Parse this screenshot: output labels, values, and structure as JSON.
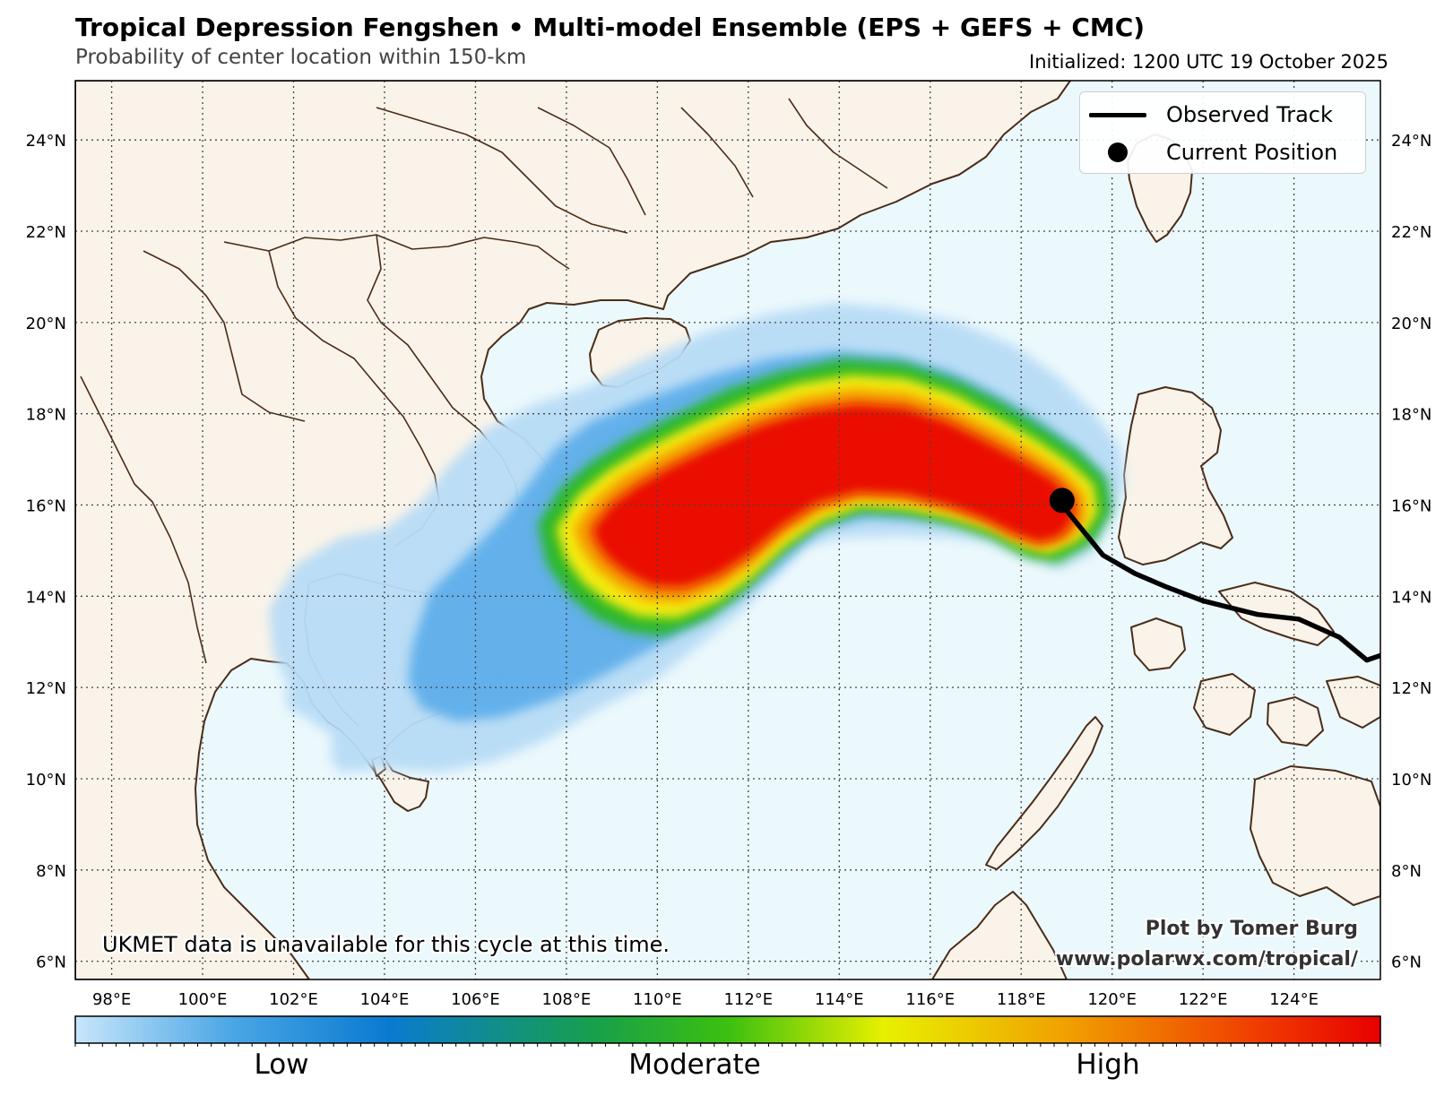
{
  "header": {
    "title": "Tropical Depression Fengshen • Multi-model Ensemble (EPS + GEFS + CMC)",
    "subtitle": "Probability of center location within 150-km",
    "initialized": "Initialized: 1200 UTC 19 October 2025"
  },
  "map": {
    "lon_range": [
      97.2,
      125.9
    ],
    "lat_range": [
      5.6,
      25.3
    ],
    "lat_ticks": [
      "6°N",
      "8°N",
      "10°N",
      "12°N",
      "14°N",
      "16°N",
      "18°N",
      "20°N",
      "22°N",
      "24°N"
    ],
    "lat_values": [
      6,
      8,
      10,
      12,
      14,
      16,
      18,
      20,
      22,
      24
    ],
    "lon_ticks": [
      "98°E",
      "100°E",
      "102°E",
      "104°E",
      "106°E",
      "108°E",
      "110°E",
      "112°E",
      "114°E",
      "116°E",
      "118°E",
      "120°E",
      "122°E",
      "124°E"
    ],
    "lon_values": [
      98,
      100,
      102,
      104,
      106,
      108,
      110,
      112,
      114,
      116,
      118,
      120,
      122,
      124
    ],
    "grid": true,
    "colors": {
      "ocean": "#ebf8fc",
      "land": "#faf3e9",
      "coast": "#4a2c18",
      "track": "#000000"
    },
    "observed_track": [
      [
        125.9,
        12.7
      ],
      [
        125.6,
        12.6
      ],
      [
        125.0,
        13.1
      ],
      [
        124.1,
        13.5
      ],
      [
        123.2,
        13.6
      ],
      [
        122.0,
        13.9
      ],
      [
        121.2,
        14.2
      ],
      [
        120.5,
        14.5
      ],
      [
        119.8,
        14.9
      ],
      [
        118.9,
        16.0
      ]
    ],
    "current_position": [
      118.9,
      16.1
    ],
    "probability_axis": [
      [
        107.5,
        15.5
      ],
      [
        108.7,
        15.0
      ],
      [
        110.0,
        15.6
      ],
      [
        111.5,
        16.6
      ],
      [
        113.0,
        17.3
      ],
      [
        114.4,
        17.5
      ],
      [
        115.8,
        17.3
      ],
      [
        117.0,
        16.9
      ],
      [
        118.3,
        16.3
      ],
      [
        119.1,
        15.6
      ]
    ],
    "probability_levels": [
      "light-blue",
      "blue",
      "green",
      "yellow",
      "orange",
      "red"
    ]
  },
  "legend": {
    "observed_track": "Observed Track",
    "current_position": "Current Position",
    "placement": "upper-right"
  },
  "notes": {
    "ukmet": "UKMET data is unavailable for this cycle at this time.",
    "credit_line1": "Plot by Tomer Burg",
    "credit_line2": "www.polarwx.com/tropical/"
  },
  "colorbar": {
    "labels": [
      "Low",
      "Moderate",
      "High"
    ],
    "colors": [
      "#c8e6fa",
      "#3a9be0",
      "#0a7ad0",
      "#18a04a",
      "#3cc010",
      "#e8f000",
      "#f0a000",
      "#f04000",
      "#e80000"
    ]
  }
}
